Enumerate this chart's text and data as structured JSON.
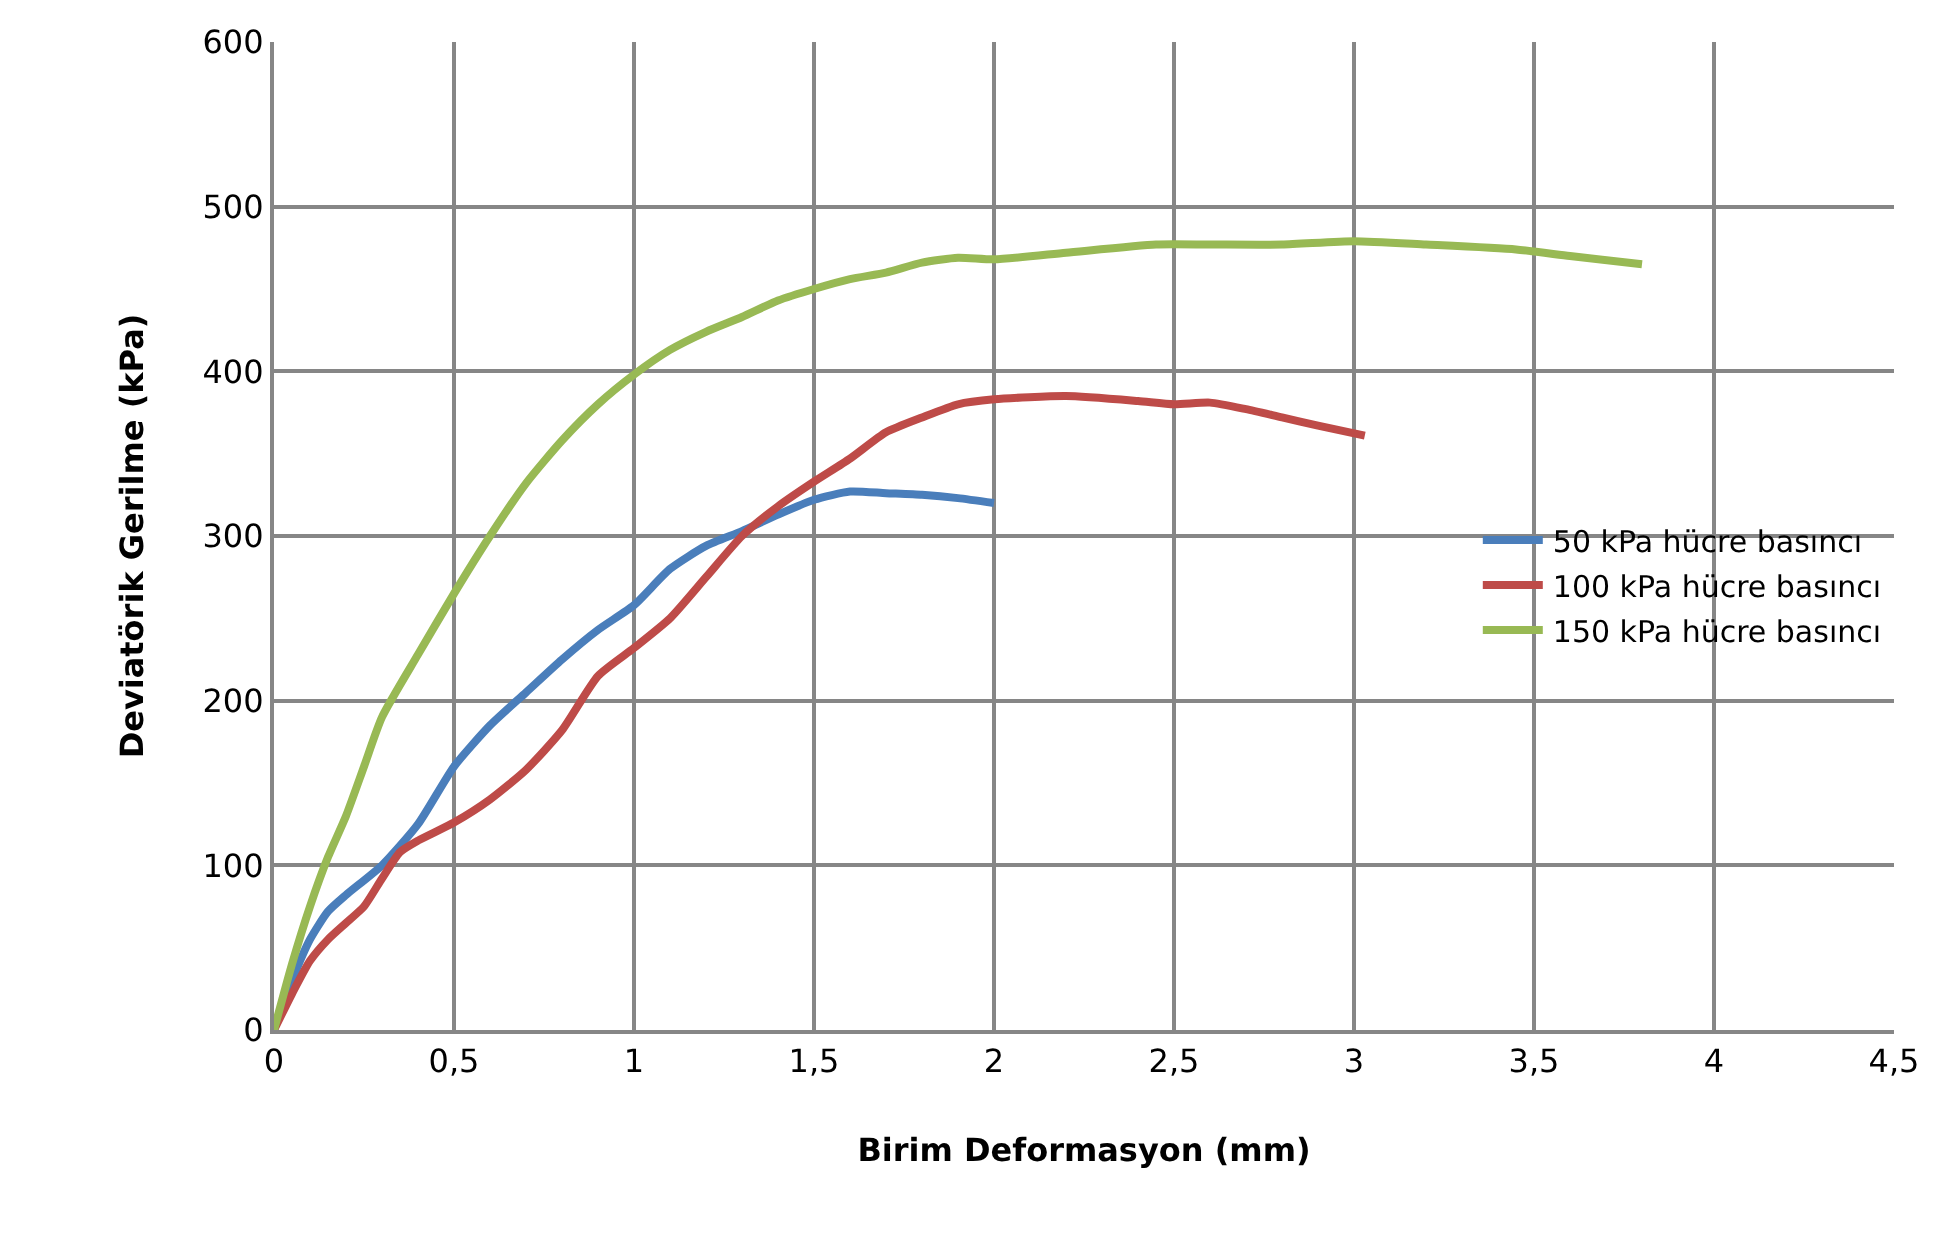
{
  "chart_data": {
    "type": "line",
    "xlabel": "Birim Deformasyon (mm)",
    "ylabel": "Deviatörik Gerilme (kPa)",
    "xlim": [
      0,
      4.5
    ],
    "xticks": [
      0,
      {
        "value": 0.5,
        "label": "0,5"
      },
      1,
      {
        "value": 1.5,
        "label": "1,5"
      },
      2,
      {
        "value": 2.5,
        "label": "2,5"
      },
      3,
      {
        "value": 3.5,
        "label": "3,5"
      },
      4,
      {
        "value": 4.5,
        "label": "4,5"
      }
    ],
    "ylim": [
      0,
      600
    ],
    "yticks": [
      0,
      100,
      200,
      300,
      400,
      500,
      600
    ],
    "grid": true,
    "legend": "right",
    "marker": "none",
    "line_style": "solid",
    "series": [
      {
        "name": "50 kPa hücre basıncı",
        "color": "#4a7ebb",
        "x": [
          0,
          0.05,
          0.1,
          0.15,
          0.2,
          0.3,
          0.4,
          0.5,
          0.6,
          0.7,
          0.8,
          0.9,
          1.0,
          1.1,
          1.2,
          1.3,
          1.4,
          1.5,
          1.6,
          1.7,
          1.8,
          1.9,
          2.0
        ],
        "values": [
          0,
          30,
          55,
          72,
          82,
          100,
          125,
          160,
          185,
          205,
          225,
          243,
          258,
          280,
          294,
          303,
          313,
          322,
          327,
          326,
          325,
          323,
          320
        ]
      },
      {
        "name": "100 kPa hücre basıncı",
        "color": "#be4b48",
        "x": [
          0,
          0.05,
          0.1,
          0.15,
          0.2,
          0.25,
          0.3,
          0.35,
          0.4,
          0.5,
          0.6,
          0.7,
          0.8,
          0.9,
          1.0,
          1.1,
          1.2,
          1.3,
          1.4,
          1.5,
          1.6,
          1.7,
          1.8,
          1.9,
          2.0,
          2.2,
          2.4,
          2.5,
          2.6,
          2.7,
          2.8,
          2.9,
          3.03
        ],
        "values": [
          0,
          22,
          42,
          55,
          65,
          75,
          92,
          108,
          115,
          126,
          140,
          158,
          182,
          215,
          232,
          250,
          275,
          300,
          318,
          333,
          347,
          363,
          372,
          380,
          383,
          385,
          382,
          380,
          381,
          377,
          372,
          367,
          361
        ]
      },
      {
        "name": "150 kPa hücre basıncı",
        "color": "#98b954",
        "x": [
          0,
          0.05,
          0.1,
          0.15,
          0.2,
          0.25,
          0.3,
          0.4,
          0.5,
          0.6,
          0.7,
          0.8,
          0.9,
          1.0,
          1.1,
          1.2,
          1.3,
          1.4,
          1.5,
          1.6,
          1.7,
          1.8,
          1.9,
          2.0,
          2.2,
          2.45,
          2.6,
          2.8,
          3.0,
          3.2,
          3.45,
          3.6,
          3.8
        ],
        "values": [
          0,
          40,
          75,
          105,
          130,
          160,
          190,
          228,
          265,
          300,
          332,
          358,
          380,
          398,
          413,
          424,
          433,
          443,
          450,
          456,
          460,
          466,
          469,
          468,
          472,
          477,
          477,
          477,
          479,
          477,
          474,
          470,
          465
        ]
      }
    ]
  }
}
